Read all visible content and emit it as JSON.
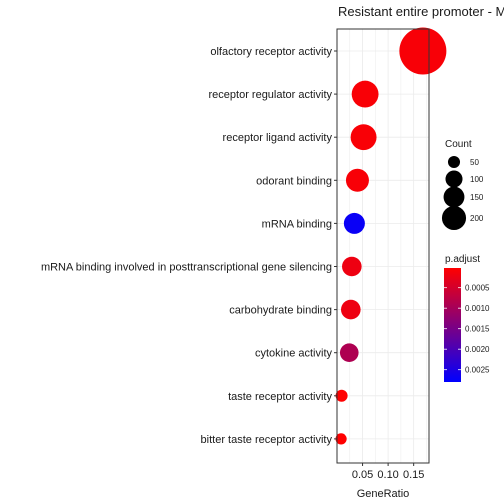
{
  "chart_data": {
    "type": "scatter",
    "title": "Resistant entire promoter - M",
    "xlabel": "GeneRatio",
    "ylabel": "",
    "xlim": [
      0.0,
      0.18
    ],
    "x_ticks": [
      0.05,
      0.1,
      0.15
    ],
    "x_tick_labels": [
      "0.05",
      "0.10",
      "0.15"
    ],
    "grid": true,
    "categories": [
      "olfactory receptor activity",
      "receptor regulator activity",
      "receptor ligand activity",
      "odorant binding",
      "mRNA binding",
      "mRNA binding involved in posttranscriptional gene silencing",
      "carbohydrate binding",
      "cytokine activity",
      "taste receptor activity",
      "bitter taste receptor activity"
    ],
    "points": [
      {
        "term": "olfactory receptor activity",
        "gene_ratio": 0.168,
        "count": 230,
        "p_adjust": 0.0001
      },
      {
        "term": "receptor regulator activity",
        "gene_ratio": 0.055,
        "count": 75,
        "p_adjust": 8e-05
      },
      {
        "term": "receptor ligand activity",
        "gene_ratio": 0.052,
        "count": 70,
        "p_adjust": 8e-05
      },
      {
        "term": "odorant binding",
        "gene_ratio": 0.04,
        "count": 55,
        "p_adjust": 0.0001
      },
      {
        "term": "mRNA binding",
        "gene_ratio": 0.034,
        "count": 46,
        "p_adjust": 0.0027
      },
      {
        "term": "mRNA binding involved in posttranscriptional gene silencing",
        "gene_ratio": 0.029,
        "count": 40,
        "p_adjust": 0.0002
      },
      {
        "term": "carbohydrate binding",
        "gene_ratio": 0.027,
        "count": 40,
        "p_adjust": 0.0002
      },
      {
        "term": "cytokine activity",
        "gene_ratio": 0.024,
        "count": 36,
        "p_adjust": 0.0009
      },
      {
        "term": "taste receptor activity",
        "gene_ratio": 0.009,
        "count": 15,
        "p_adjust": 2e-05
      },
      {
        "term": "bitter taste receptor activity",
        "gene_ratio": 0.008,
        "count": 13,
        "p_adjust": 2e-05
      }
    ],
    "size_legend": {
      "title": "Count",
      "values": [
        50,
        100,
        150,
        200
      ],
      "labels": [
        "50",
        "100",
        "150",
        "200"
      ]
    },
    "color_legend": {
      "title": "p.adjust",
      "range": [
        2e-05,
        0.0028
      ],
      "low_color": "#ff0000",
      "high_color": "#0000ff",
      "ticks": [
        0.0005,
        0.001,
        0.0015,
        0.002,
        0.0025
      ],
      "tick_labels": [
        "0.0005",
        "0.0010",
        "0.0015",
        "0.0020",
        "0.0025"
      ]
    },
    "legend_position": "right"
  }
}
